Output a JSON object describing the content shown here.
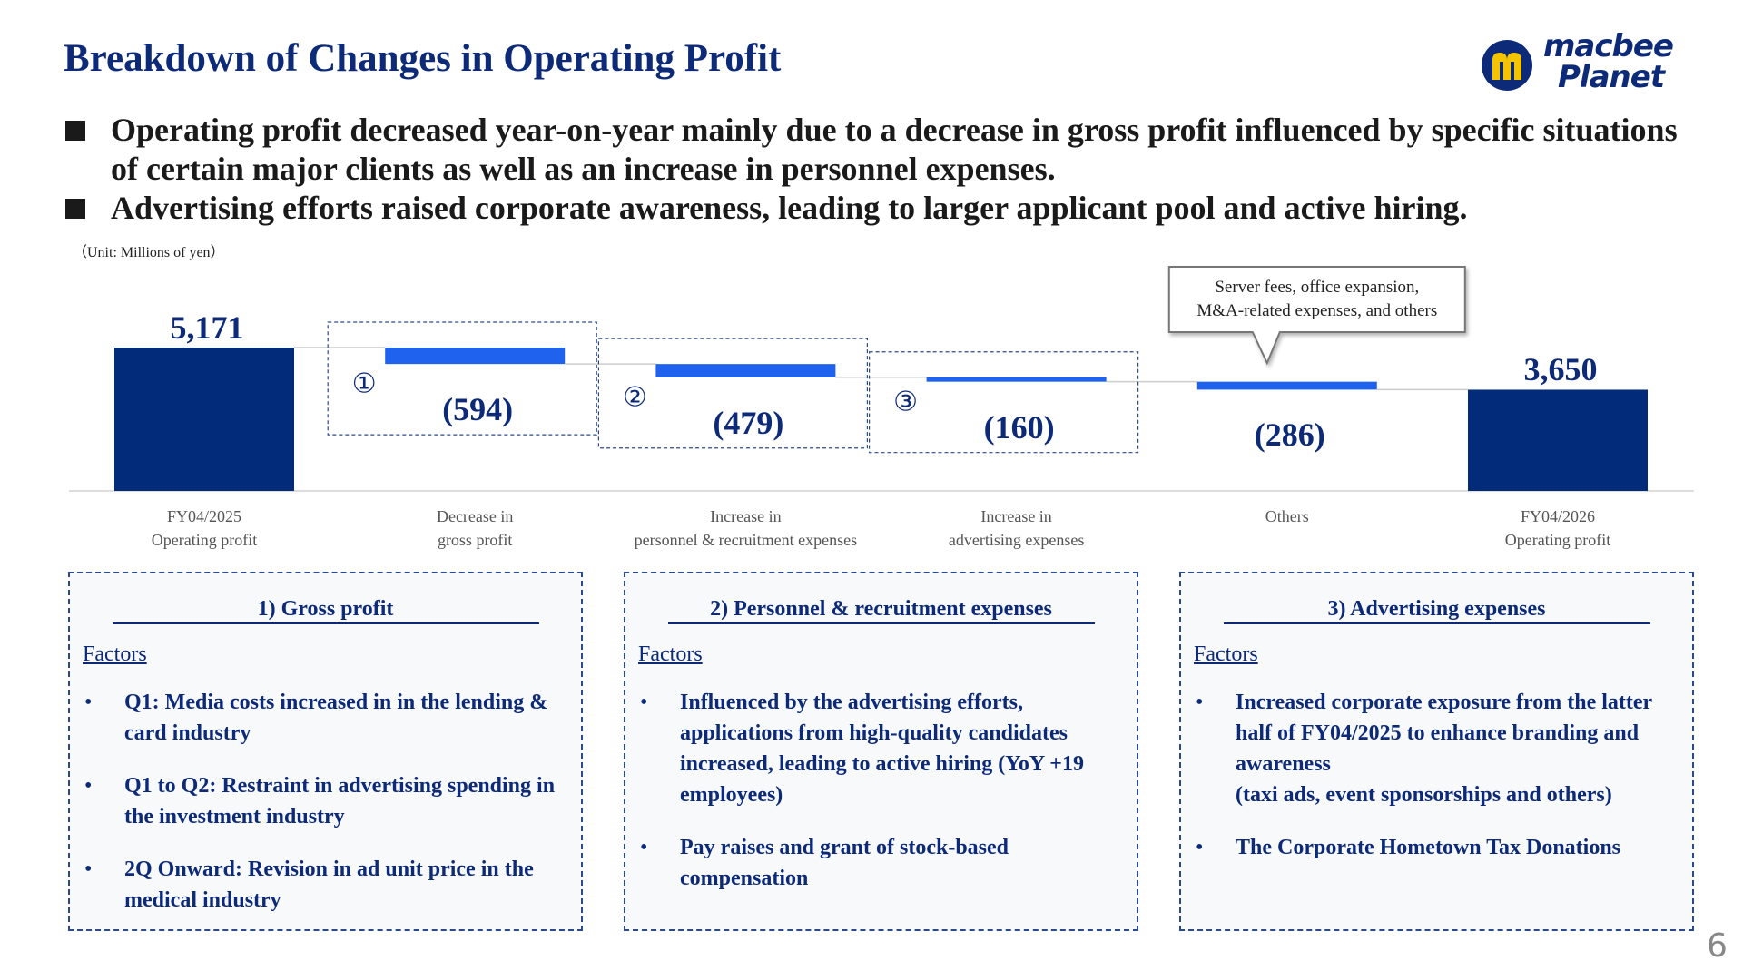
{
  "header": {
    "title": "Breakdown of Changes in Operating Profit",
    "logo": [
      "macbee",
      "Planet"
    ]
  },
  "bullets": [
    "Operating profit decreased year-on-year mainly due to a decrease in gross profit influenced by specific situations of certain major clients as well as an increase in personnel expenses.",
    "Advertising efforts raised corporate awareness, leading to larger applicant pool and active hiring."
  ],
  "chart_data": {
    "type": "waterfall",
    "subtitle": "（Unit: Millions of yen）",
    "categories": [
      "FY04/2025\nOperating profit",
      "Decrease in\ngross profit",
      "Increase in\npersonnel & recruitment expenses",
      "Increase in\nadvertising expenses",
      "Others",
      "FY04/2026\nOperating profit"
    ],
    "values": [
      5171,
      -594,
      -479,
      -160,
      -286,
      3650
    ],
    "value_labels": [
      "5,171",
      "(594)",
      "(479)",
      "(160)",
      "(286)",
      "3,650"
    ],
    "measure": [
      "absolute",
      "relative",
      "relative",
      "relative",
      "relative",
      "absolute"
    ],
    "step_markers": [
      null,
      "①",
      "②",
      "③",
      null,
      null
    ],
    "annotations": [
      null,
      null,
      null,
      null,
      "Server fees, office expansion,\nM&A-related expenses, and others",
      null
    ],
    "total_color": "#022b7a",
    "change_color": "#1f62ee"
  },
  "panels": [
    {
      "title": "1) Gross profit",
      "factors_label": "Factors",
      "items": [
        "Q1: Media costs increased in in the lending & card industry",
        "Q1 to Q2: Restraint in advertising spending in the investment industry",
        "2Q Onward: Revision in ad unit price in the medical industry"
      ]
    },
    {
      "title": "2) Personnel & recruitment expenses",
      "factors_label": "Factors",
      "items": [
        "Influenced by the advertising efforts, applications from high-quality candidates increased, leading to active hiring (YoY +19 employees)",
        "Pay raises and grant of stock-based compensation"
      ]
    },
    {
      "title": "3) Advertising expenses",
      "factors_label": "Factors",
      "items": [
        "Increased corporate exposure from the latter half of FY04/2025 to enhance branding and awareness\n (taxi ads, event sponsorships and others)",
        "The Corporate Hometown Tax Donations"
      ]
    }
  ],
  "page_number": "6"
}
